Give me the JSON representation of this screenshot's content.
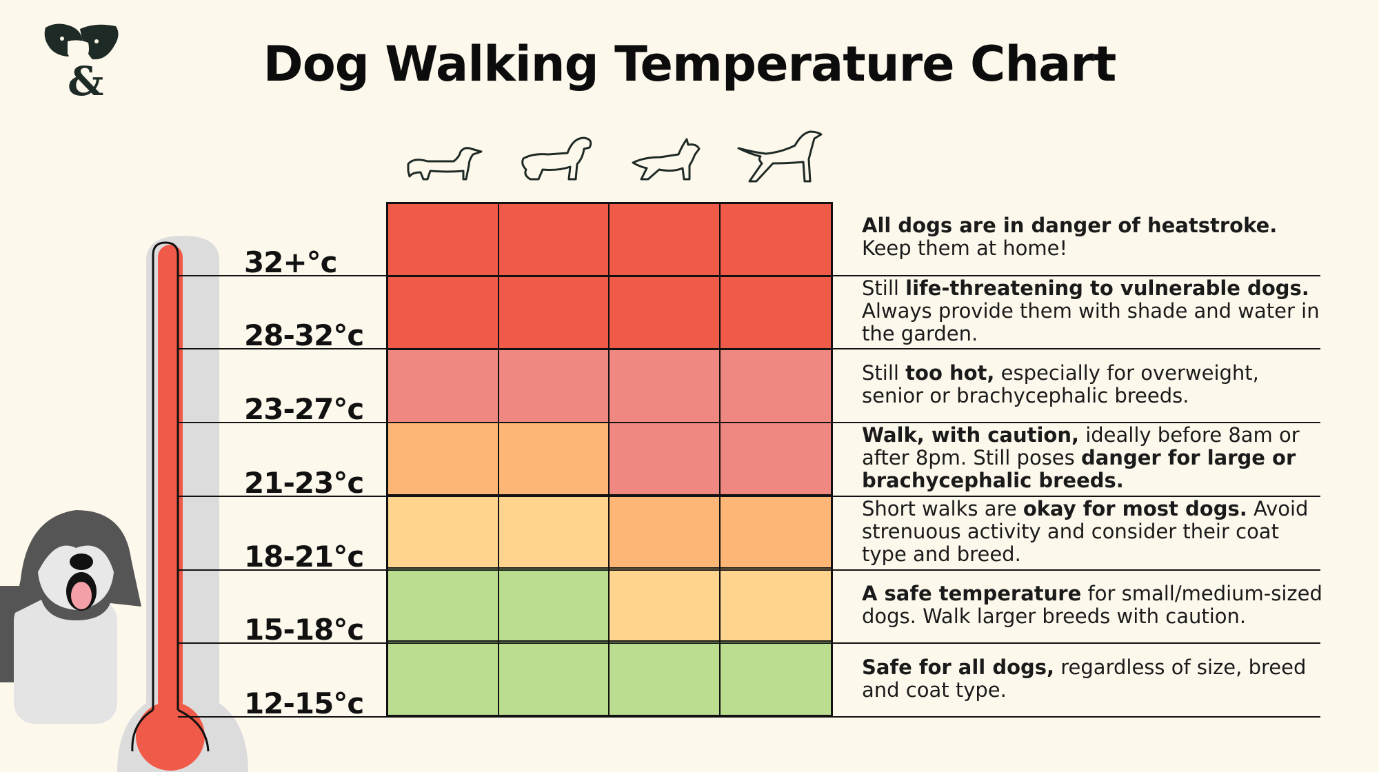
{
  "title": "Dog Walking Temperature Chart",
  "colors": {
    "background": "#fdf8ec",
    "red": "#f05a48",
    "pink": "#ee8880",
    "orange": "#fdb676",
    "yellow": "#fed48f",
    "green": "#badd90",
    "thermometer": "#f05a48"
  },
  "breed_icons": [
    "dachshund-icon",
    "spaniel-icon",
    "bulldog-icon",
    "pointer-icon"
  ],
  "chart_data": {
    "type": "heatmap",
    "title": "Dog Walking Temperature Chart",
    "rows": [
      "32+°c",
      "28-32°c",
      "23-27°c",
      "21-23°c",
      "18-21°c",
      "15-18°c",
      "12-15°c"
    ],
    "columns": [
      "dachshund-icon",
      "spaniel-icon",
      "bulldog-icon",
      "pointer-icon"
    ],
    "cells": [
      [
        "red",
        "red",
        "red",
        "red"
      ],
      [
        "red",
        "red",
        "red",
        "red"
      ],
      [
        "pink",
        "pink",
        "pink",
        "pink"
      ],
      [
        "orange",
        "orange",
        "pink",
        "pink"
      ],
      [
        "yellow",
        "yellow",
        "orange",
        "orange"
      ],
      [
        "green",
        "green",
        "yellow",
        "yellow"
      ],
      [
        "green",
        "green",
        "green",
        "green"
      ]
    ]
  },
  "descriptions": [
    [
      {
        "t": "All dogs are in danger of heatstroke.",
        "b": true
      },
      {
        "t": "\nKeep them at home!",
        "b": false
      }
    ],
    [
      {
        "t": "Still ",
        "b": false
      },
      {
        "t": "life-threatening to vulnerable dogs.",
        "b": true
      },
      {
        "t": " Always provide them with shade and water in the garden.",
        "b": false
      }
    ],
    [
      {
        "t": "Still ",
        "b": false
      },
      {
        "t": "too hot,",
        "b": true
      },
      {
        "t": " especially for overweight, senior or brachycephalic breeds.",
        "b": false
      }
    ],
    [
      {
        "t": "Walk, with caution,",
        "b": true
      },
      {
        "t": " ideally before 8am or after 8pm. Still poses ",
        "b": false
      },
      {
        "t": "danger for large or brachycephalic breeds.",
        "b": true
      }
    ],
    [
      {
        "t": "Short walks are ",
        "b": false
      },
      {
        "t": "okay for most dogs.",
        "b": true
      },
      {
        "t": " Avoid strenuous activity and consider their coat type and breed.",
        "b": false
      }
    ],
    [
      {
        "t": "A safe temperature",
        "b": true
      },
      {
        "t": " for small/medium-sized dogs. Walk larger breeds with caution.",
        "b": false
      }
    ],
    [
      {
        "t": "Safe for all dogs,",
        "b": true
      },
      {
        "t": " regardless of size, breed and coat type.",
        "b": false
      }
    ]
  ]
}
